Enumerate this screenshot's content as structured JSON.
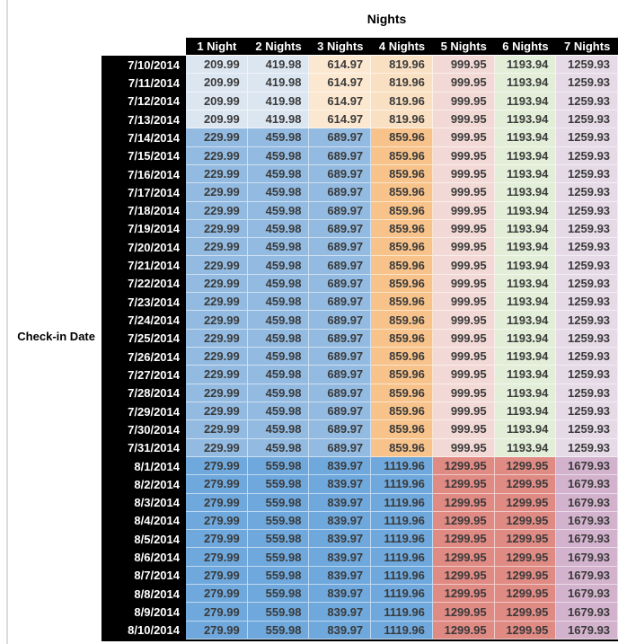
{
  "labels": {
    "title": "Nights",
    "row_axis": "Check-in Date"
  },
  "palette": {
    "blue_light": "#DCE6F1",
    "blue_mid": "#93BBE1",
    "blue_dark": "#6FA8DC",
    "tan_light": "#FCE8D0",
    "tan_mid": "#FAE0C2",
    "orange": "#F7C38B",
    "pink_light": "#F2D9D6",
    "salmon": "#E08A84",
    "green_light": "#E2EED8",
    "purple_light": "#E5DAE6",
    "mauve": "#D2B2CC",
    "header_bg": "#000000",
    "header_text": "#FFFFFF",
    "cell_text": "#3A3A3A"
  },
  "bands": {
    "early": [
      "blue_light",
      "blue_light",
      "tan_light",
      "tan_mid",
      "pink_light",
      "green_light",
      "purple_light"
    ],
    "mid": [
      "blue_mid",
      "blue_mid",
      "blue_mid",
      "orange",
      "pink_light",
      "green_light",
      "purple_light"
    ],
    "late": [
      "blue_dark",
      "blue_dark",
      "blue_dark",
      "blue_dark",
      "salmon",
      "salmon",
      "mauve"
    ]
  },
  "chart_data": {
    "type": "table",
    "title": "Nights",
    "row_axis_label": "Check-in Date",
    "columns": [
      "1 Night",
      "2 Nights",
      "3 Nights",
      "4 Nights",
      "5 Nights",
      "6 Nights",
      "7 Nights"
    ],
    "rows": [
      {
        "date": "7/10/2014",
        "band": "early",
        "values": [
          "209.99",
          "419.98",
          "614.97",
          "819.96",
          "999.95",
          "1193.94",
          "1259.93"
        ]
      },
      {
        "date": "7/11/2014",
        "band": "early",
        "values": [
          "209.99",
          "419.98",
          "614.97",
          "819.96",
          "999.95",
          "1193.94",
          "1259.93"
        ]
      },
      {
        "date": "7/12/2014",
        "band": "early",
        "values": [
          "209.99",
          "419.98",
          "614.97",
          "819.96",
          "999.95",
          "1193.94",
          "1259.93"
        ]
      },
      {
        "date": "7/13/2014",
        "band": "early",
        "values": [
          "209.99",
          "419.98",
          "614.97",
          "819.96",
          "999.95",
          "1193.94",
          "1259.93"
        ]
      },
      {
        "date": "7/14/2014",
        "band": "mid",
        "values": [
          "229.99",
          "459.98",
          "689.97",
          "859.96",
          "999.95",
          "1193.94",
          "1259.93"
        ]
      },
      {
        "date": "7/15/2014",
        "band": "mid",
        "values": [
          "229.99",
          "459.98",
          "689.97",
          "859.96",
          "999.95",
          "1193.94",
          "1259.93"
        ]
      },
      {
        "date": "7/16/2014",
        "band": "mid",
        "values": [
          "229.99",
          "459.98",
          "689.97",
          "859.96",
          "999.95",
          "1193.94",
          "1259.93"
        ]
      },
      {
        "date": "7/17/2014",
        "band": "mid",
        "values": [
          "229.99",
          "459.98",
          "689.97",
          "859.96",
          "999.95",
          "1193.94",
          "1259.93"
        ]
      },
      {
        "date": "7/18/2014",
        "band": "mid",
        "values": [
          "229.99",
          "459.98",
          "689.97",
          "859.96",
          "999.95",
          "1193.94",
          "1259.93"
        ]
      },
      {
        "date": "7/19/2014",
        "band": "mid",
        "values": [
          "229.99",
          "459.98",
          "689.97",
          "859.96",
          "999.95",
          "1193.94",
          "1259.93"
        ]
      },
      {
        "date": "7/20/2014",
        "band": "mid",
        "values": [
          "229.99",
          "459.98",
          "689.97",
          "859.96",
          "999.95",
          "1193.94",
          "1259.93"
        ]
      },
      {
        "date": "7/21/2014",
        "band": "mid",
        "values": [
          "229.99",
          "459.98",
          "689.97",
          "859.96",
          "999.95",
          "1193.94",
          "1259.93"
        ]
      },
      {
        "date": "7/22/2014",
        "band": "mid",
        "values": [
          "229.99",
          "459.98",
          "689.97",
          "859.96",
          "999.95",
          "1193.94",
          "1259.93"
        ]
      },
      {
        "date": "7/23/2014",
        "band": "mid",
        "values": [
          "229.99",
          "459.98",
          "689.97",
          "859.96",
          "999.95",
          "1193.94",
          "1259.93"
        ]
      },
      {
        "date": "7/24/2014",
        "band": "mid",
        "values": [
          "229.99",
          "459.98",
          "689.97",
          "859.96",
          "999.95",
          "1193.94",
          "1259.93"
        ]
      },
      {
        "date": "7/25/2014",
        "band": "mid",
        "values": [
          "229.99",
          "459.98",
          "689.97",
          "859.96",
          "999.95",
          "1193.94",
          "1259.93"
        ]
      },
      {
        "date": "7/26/2014",
        "band": "mid",
        "values": [
          "229.99",
          "459.98",
          "689.97",
          "859.96",
          "999.95",
          "1193.94",
          "1259.93"
        ]
      },
      {
        "date": "7/27/2014",
        "band": "mid",
        "values": [
          "229.99",
          "459.98",
          "689.97",
          "859.96",
          "999.95",
          "1193.94",
          "1259.93"
        ]
      },
      {
        "date": "7/28/2014",
        "band": "mid",
        "values": [
          "229.99",
          "459.98",
          "689.97",
          "859.96",
          "999.95",
          "1193.94",
          "1259.93"
        ]
      },
      {
        "date": "7/29/2014",
        "band": "mid",
        "values": [
          "229.99",
          "459.98",
          "689.97",
          "859.96",
          "999.95",
          "1193.94",
          "1259.93"
        ]
      },
      {
        "date": "7/30/2014",
        "band": "mid",
        "values": [
          "229.99",
          "459.98",
          "689.97",
          "859.96",
          "999.95",
          "1193.94",
          "1259.93"
        ]
      },
      {
        "date": "7/31/2014",
        "band": "mid",
        "values": [
          "229.99",
          "459.98",
          "689.97",
          "859.96",
          "999.95",
          "1193.94",
          "1259.93"
        ]
      },
      {
        "date": "8/1/2014",
        "band": "late",
        "values": [
          "279.99",
          "559.98",
          "839.97",
          "1119.96",
          "1299.95",
          "1299.95",
          "1679.93"
        ]
      },
      {
        "date": "8/2/2014",
        "band": "late",
        "values": [
          "279.99",
          "559.98",
          "839.97",
          "1119.96",
          "1299.95",
          "1299.95",
          "1679.93"
        ]
      },
      {
        "date": "8/3/2014",
        "band": "late",
        "values": [
          "279.99",
          "559.98",
          "839.97",
          "1119.96",
          "1299.95",
          "1299.95",
          "1679.93"
        ]
      },
      {
        "date": "8/4/2014",
        "band": "late",
        "values": [
          "279.99",
          "559.98",
          "839.97",
          "1119.96",
          "1299.95",
          "1299.95",
          "1679.93"
        ]
      },
      {
        "date": "8/5/2014",
        "band": "late",
        "values": [
          "279.99",
          "559.98",
          "839.97",
          "1119.96",
          "1299.95",
          "1299.95",
          "1679.93"
        ]
      },
      {
        "date": "8/6/2014",
        "band": "late",
        "values": [
          "279.99",
          "559.98",
          "839.97",
          "1119.96",
          "1299.95",
          "1299.95",
          "1679.93"
        ]
      },
      {
        "date": "8/7/2014",
        "band": "late",
        "values": [
          "279.99",
          "559.98",
          "839.97",
          "1119.96",
          "1299.95",
          "1299.95",
          "1679.93"
        ]
      },
      {
        "date": "8/8/2014",
        "band": "late",
        "values": [
          "279.99",
          "559.98",
          "839.97",
          "1119.96",
          "1299.95",
          "1299.95",
          "1679.93"
        ]
      },
      {
        "date": "8/9/2014",
        "band": "late",
        "values": [
          "279.99",
          "559.98",
          "839.97",
          "1119.96",
          "1299.95",
          "1299.95",
          "1679.93"
        ]
      },
      {
        "date": "8/10/2014",
        "band": "late",
        "values": [
          "279.99",
          "559.98",
          "839.97",
          "1119.96",
          "1299.95",
          "1299.95",
          "1679.93"
        ]
      }
    ]
  }
}
